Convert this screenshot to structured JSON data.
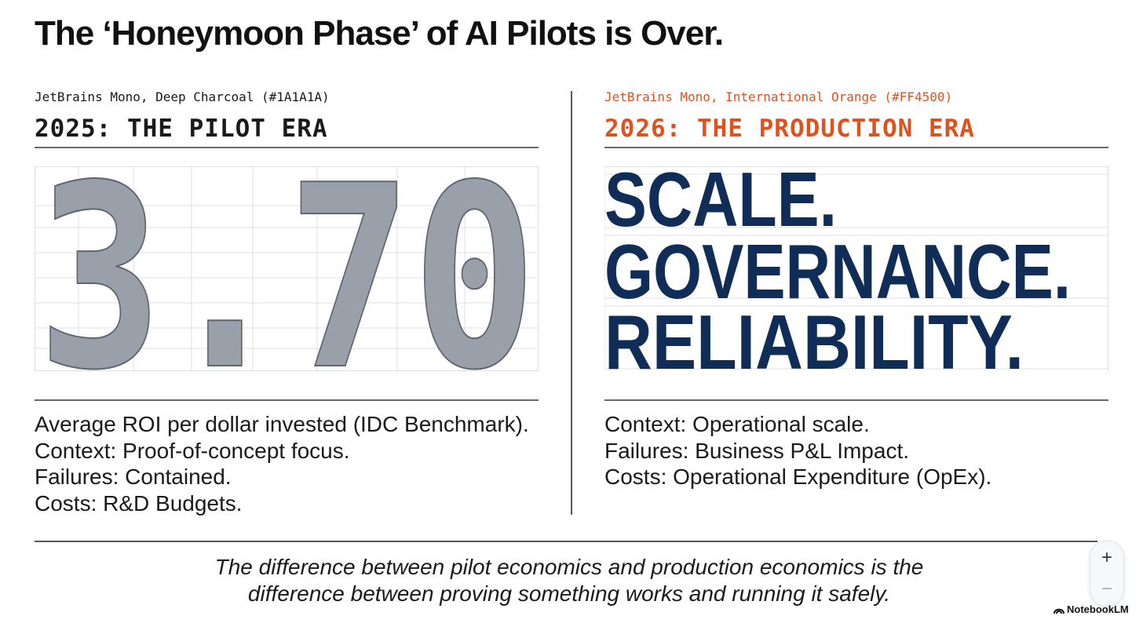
{
  "title": "The ‘Honeymoon Phase’ of AI Pilots is Over.",
  "left": {
    "font_note": "JetBrains Mono, Deep Charcoal (#1A1A1A)",
    "heading": "2025: THE PILOT ERA",
    "heading_color": "#1A1A1A",
    "metric": "3.70",
    "metric_fill": "#9aa0aa",
    "details": [
      "Average ROI per dollar invested (IDC Benchmark).",
      "Context: Proof-of-concept focus.",
      "Failures: Contained.",
      "Costs: R&D Budgets."
    ]
  },
  "right": {
    "font_note": "JetBrains Mono, International Orange (#FF4500)",
    "heading": "2026: THE PRODUCTION ERA",
    "heading_color": "#E0511E",
    "statements": [
      "SCALE.",
      "GOVERNANCE.",
      "RELIABILITY."
    ],
    "statement_color": "#0F2D56",
    "details": [
      "Context: Operational scale.",
      "Failures: Business P&L Impact.",
      "Costs: Operational Expenditure (OpEx)."
    ]
  },
  "quote": {
    "line1": "The difference between pilot economics and production economics is the",
    "line2": "difference between proving something works and running it safely."
  },
  "zoom": {
    "plus": "+",
    "minus": "−"
  },
  "brand": {
    "name": "NotebookLM",
    "icon": "notebooklm-logo-icon"
  }
}
